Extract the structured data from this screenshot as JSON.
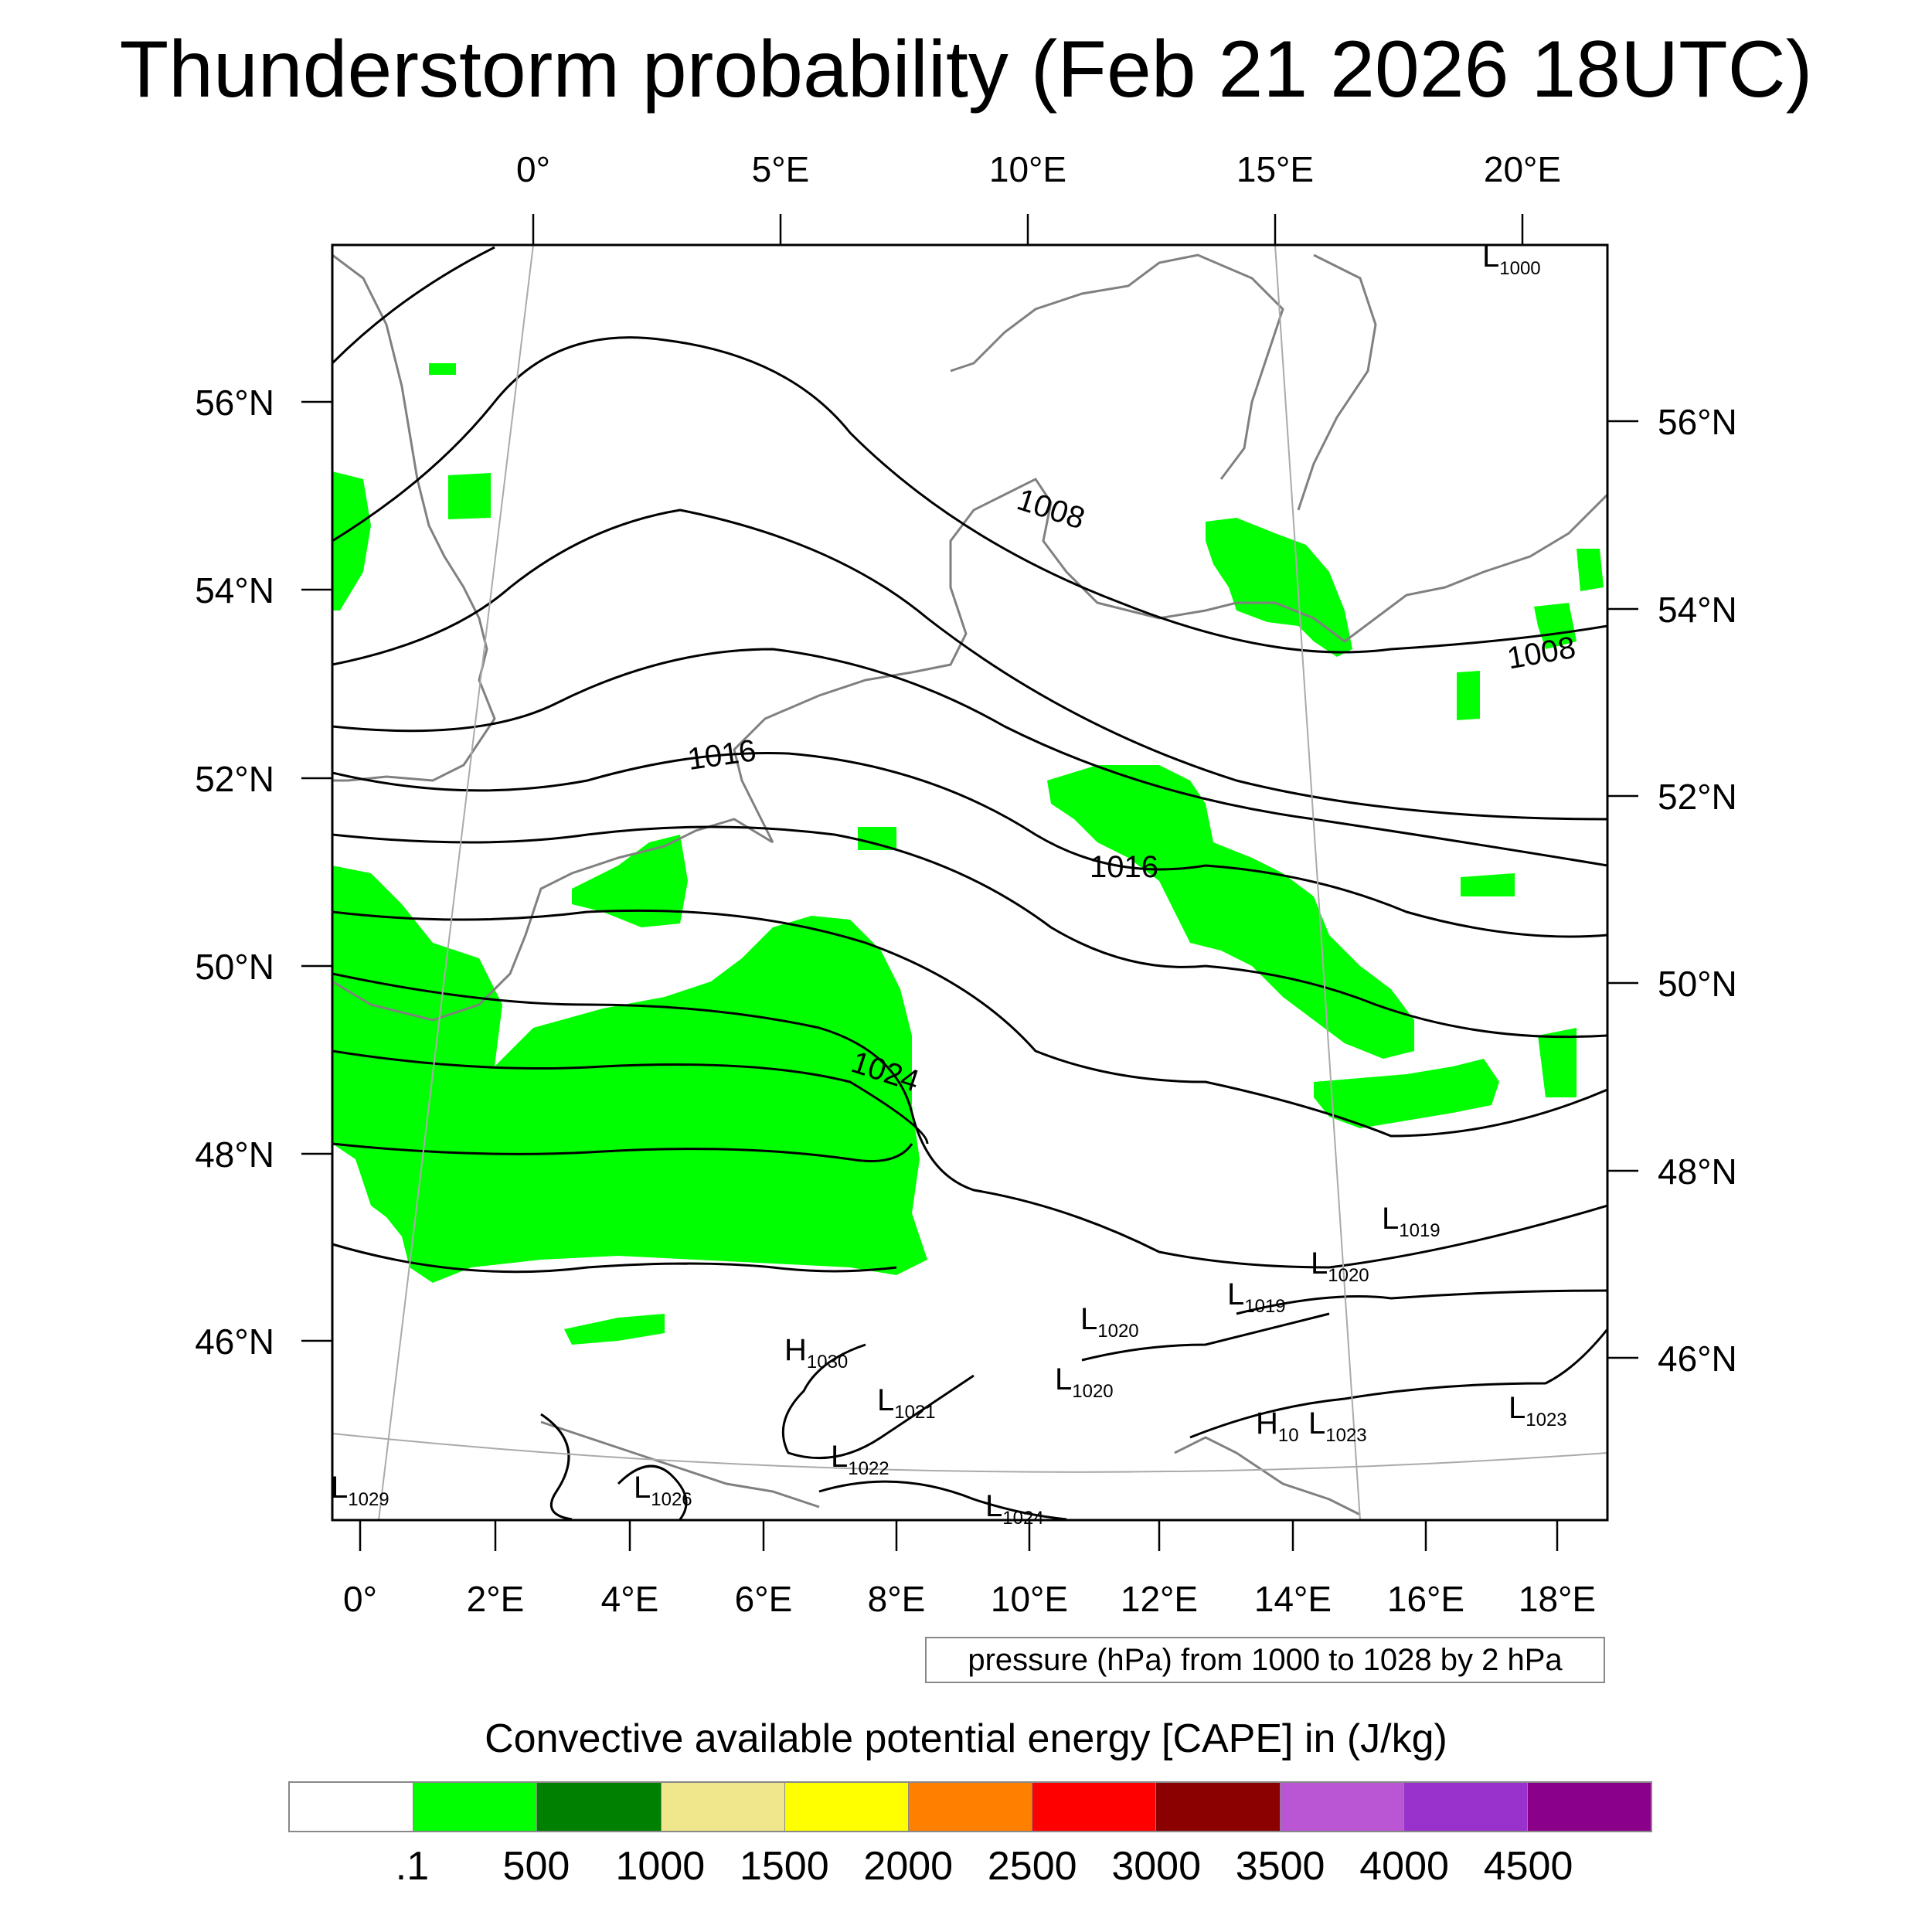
{
  "title": "Thunderstorm probability (Feb 21 2026 18UTC)",
  "top_lon_labels": [
    "0°",
    "5°E",
    "10°E",
    "15°E",
    "20°E"
  ],
  "bottom_lon_labels": [
    "0°",
    "2°E",
    "4°E",
    "6°E",
    "8°E",
    "10°E",
    "12°E",
    "14°E",
    "16°E",
    "18°E"
  ],
  "left_lat_labels": [
    "56°N",
    "54°N",
    "52°N",
    "50°N",
    "48°N",
    "46°N"
  ],
  "right_lat_labels": [
    "56°N",
    "54°N",
    "52°N",
    "50°N",
    "48°N",
    "46°N"
  ],
  "isobar_labels": [
    "1008",
    "1008",
    "1016",
    "1016",
    "1024"
  ],
  "pressure_centers": [
    {
      "type": "L",
      "value": "1000"
    },
    {
      "type": "L",
      "value": "1019"
    },
    {
      "type": "L",
      "value": "1020"
    },
    {
      "type": "L",
      "value": "1019"
    },
    {
      "type": "L",
      "value": "1020"
    },
    {
      "type": "H",
      "value": "1030"
    },
    {
      "type": "L",
      "value": "1020"
    },
    {
      "type": "L",
      "value": "1021"
    },
    {
      "type": "H",
      "value": "10"
    },
    {
      "type": "L",
      "value": "1023"
    },
    {
      "type": "L",
      "value": "1023"
    },
    {
      "type": "L",
      "value": "1022"
    },
    {
      "type": "L",
      "value": "1029"
    },
    {
      "type": "L",
      "value": "1026"
    },
    {
      "type": "L",
      "value": "1024"
    }
  ],
  "info_box": "pressure (hPa) from 1000 to 1028 by 2 hPa",
  "colorbar": {
    "title": "Convective available potential energy [CAPE] in (J/kg)",
    "colors": [
      "#ffffff",
      "#00ff00",
      "#008000",
      "#f0e68c",
      "#ffff00",
      "#ff8000",
      "#ff0000",
      "#8b0000",
      "#ba55d3",
      "#9932cc",
      "#8b008b"
    ],
    "labels": [
      ".1",
      "500",
      "1000",
      "1500",
      "2000",
      "2500",
      "3000",
      "3500",
      "4000",
      "4500"
    ]
  },
  "colors": {
    "cape_fill": "#00ff00",
    "coastline": "#808080",
    "isobar": "#000000",
    "grid": "#aaaaaa"
  }
}
